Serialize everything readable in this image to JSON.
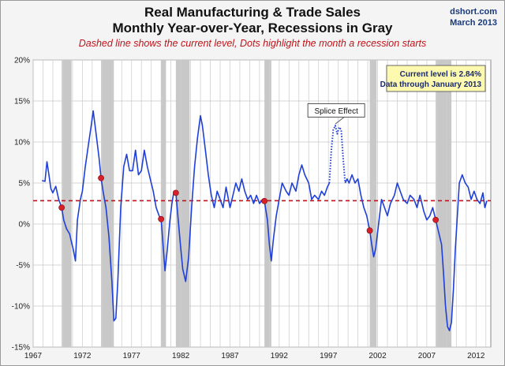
{
  "header": {
    "title_line1": "Real Manufacturing & Trade Sales",
    "title_line2": "Monthly Year-over-Year, Recessions in Gray",
    "subtitle": "Dashed line shows the current level, Dots highlight the month a recession starts",
    "source_site": "dshort.com",
    "source_date": "March 2013"
  },
  "colors": {
    "series": "#1f3fd9",
    "current_level": "#c0141b",
    "recession_shade": "#c8c8c8",
    "callout_bg": "#fdfab0"
  },
  "chart_data": {
    "type": "line",
    "title": "Real Manufacturing & Trade Sales — Monthly Year-over-Year, Recessions in Gray",
    "xlabel": "",
    "ylabel": "",
    "xlim": [
      1967,
      2013.5
    ],
    "ylim": [
      -15,
      20
    ],
    "x_ticks": [
      "1967",
      "1972",
      "1977",
      "1982",
      "1987",
      "1992",
      "1997",
      "2002",
      "2007",
      "2012"
    ],
    "y_ticks": [
      "20%",
      "15%",
      "10%",
      "5%",
      "0%",
      "-5%",
      "-10%",
      "-15%"
    ],
    "y_tick_values": [
      20,
      15,
      10,
      5,
      0,
      -5,
      -10,
      -15
    ],
    "grid": true,
    "current_level": 2.84,
    "recessions": [
      {
        "start": 1969.9,
        "end": 1970.9
      },
      {
        "start": 1973.9,
        "end": 1975.2
      },
      {
        "start": 1980.0,
        "end": 1980.5
      },
      {
        "start": 1981.5,
        "end": 1982.9
      },
      {
        "start": 1990.5,
        "end": 1991.2
      },
      {
        "start": 2001.2,
        "end": 2001.9
      },
      {
        "start": 2007.9,
        "end": 2009.5
      }
    ],
    "recession_start_dots": [
      {
        "x": 1969.9,
        "y": 2.0
      },
      {
        "x": 1973.9,
        "y": 5.6
      },
      {
        "x": 1980.0,
        "y": 0.6
      },
      {
        "x": 1981.5,
        "y": 3.8
      },
      {
        "x": 1990.5,
        "y": 2.8
      },
      {
        "x": 2001.2,
        "y": -0.8
      },
      {
        "x": 2007.9,
        "y": 0.5
      }
    ],
    "series": [
      {
        "name": "",
        "style": "solid",
        "points": [
          [
            1967.9,
            5.3
          ],
          [
            1968.2,
            5.2
          ],
          [
            1968.4,
            7.6
          ],
          [
            1968.6,
            6.0
          ],
          [
            1968.8,
            4.3
          ],
          [
            1969.0,
            3.8
          ],
          [
            1969.3,
            4.6
          ],
          [
            1969.6,
            3.0
          ],
          [
            1969.9,
            2.0
          ],
          [
            1970.1,
            0.5
          ],
          [
            1970.4,
            -0.6
          ],
          [
            1970.7,
            -1.2
          ],
          [
            1970.9,
            -2.2
          ],
          [
            1971.1,
            -3.2
          ],
          [
            1971.3,
            -4.5
          ],
          [
            1971.5,
            0.5
          ],
          [
            1971.8,
            3.0
          ],
          [
            1972.0,
            4.0
          ],
          [
            1972.3,
            7.0
          ],
          [
            1972.6,
            9.5
          ],
          [
            1972.9,
            12.0
          ],
          [
            1973.1,
            13.8
          ],
          [
            1973.4,
            11.0
          ],
          [
            1973.7,
            8.0
          ],
          [
            1973.9,
            5.6
          ],
          [
            1974.1,
            4.0
          ],
          [
            1974.4,
            2.0
          ],
          [
            1974.7,
            -1.5
          ],
          [
            1975.0,
            -7.0
          ],
          [
            1975.2,
            -11.8
          ],
          [
            1975.4,
            -11.5
          ],
          [
            1975.6,
            -7.0
          ],
          [
            1975.9,
            2.0
          ],
          [
            1976.2,
            7.0
          ],
          [
            1976.5,
            8.5
          ],
          [
            1976.8,
            6.5
          ],
          [
            1977.1,
            6.5
          ],
          [
            1977.4,
            9.0
          ],
          [
            1977.7,
            6.0
          ],
          [
            1978.0,
            6.5
          ],
          [
            1978.3,
            9.0
          ],
          [
            1978.6,
            7.0
          ],
          [
            1978.9,
            5.5
          ],
          [
            1979.2,
            4.0
          ],
          [
            1979.5,
            2.0
          ],
          [
            1979.8,
            1.0
          ],
          [
            1980.0,
            0.6
          ],
          [
            1980.2,
            -2.5
          ],
          [
            1980.4,
            -5.7
          ],
          [
            1980.6,
            -3.5
          ],
          [
            1980.9,
            0.5
          ],
          [
            1981.1,
            2.5
          ],
          [
            1981.3,
            4.0
          ],
          [
            1981.5,
            3.8
          ],
          [
            1981.7,
            1.0
          ],
          [
            1982.0,
            -3.0
          ],
          [
            1982.2,
            -5.5
          ],
          [
            1982.5,
            -7.0
          ],
          [
            1982.8,
            -4.0
          ],
          [
            1983.1,
            2.0
          ],
          [
            1983.4,
            7.0
          ],
          [
            1983.7,
            10.5
          ],
          [
            1984.0,
            13.2
          ],
          [
            1984.2,
            12.0
          ],
          [
            1984.5,
            9.0
          ],
          [
            1984.8,
            6.0
          ],
          [
            1985.1,
            3.5
          ],
          [
            1985.4,
            2.0
          ],
          [
            1985.7,
            4.0
          ],
          [
            1986.0,
            3.0
          ],
          [
            1986.3,
            2.0
          ],
          [
            1986.6,
            4.5
          ],
          [
            1987.0,
            2.0
          ],
          [
            1987.3,
            3.5
          ],
          [
            1987.6,
            5.0
          ],
          [
            1987.9,
            4.0
          ],
          [
            1988.2,
            5.5
          ],
          [
            1988.5,
            4.0
          ],
          [
            1988.8,
            3.0
          ],
          [
            1989.1,
            3.5
          ],
          [
            1989.4,
            2.5
          ],
          [
            1989.7,
            3.5
          ],
          [
            1990.0,
            2.5
          ],
          [
            1990.3,
            3.0
          ],
          [
            1990.5,
            2.8
          ],
          [
            1990.8,
            0.5
          ],
          [
            1991.0,
            -2.5
          ],
          [
            1991.2,
            -4.5
          ],
          [
            1991.4,
            -2.0
          ],
          [
            1991.7,
            1.0
          ],
          [
            1992.0,
            3.0
          ],
          [
            1992.3,
            5.0
          ],
          [
            1992.7,
            4.0
          ],
          [
            1993.0,
            3.5
          ],
          [
            1993.3,
            5.0
          ],
          [
            1993.7,
            4.0
          ],
          [
            1994.0,
            6.0
          ],
          [
            1994.3,
            7.2
          ],
          [
            1994.6,
            6.0
          ],
          [
            1995.0,
            5.0
          ],
          [
            1995.3,
            3.0
          ],
          [
            1995.6,
            3.5
          ],
          [
            1996.0,
            3.0
          ],
          [
            1996.3,
            4.0
          ],
          [
            1996.6,
            3.5
          ],
          [
            1996.9,
            4.5
          ],
          [
            1997.1,
            5.0
          ]
        ]
      },
      {
        "name": "Splice Effect",
        "style": "dotted",
        "points": [
          [
            1997.1,
            5.0
          ],
          [
            1997.3,
            9.0
          ],
          [
            1997.5,
            11.5
          ],
          [
            1997.7,
            12.0
          ],
          [
            1997.9,
            11.0
          ],
          [
            1998.1,
            11.8
          ],
          [
            1998.3,
            11.5
          ],
          [
            1998.5,
            8.0
          ],
          [
            1998.7,
            5.0
          ]
        ]
      },
      {
        "name": "",
        "style": "solid",
        "points": [
          [
            1998.7,
            5.0
          ],
          [
            1998.9,
            5.5
          ],
          [
            1999.1,
            5.0
          ],
          [
            1999.4,
            6.0
          ],
          [
            1999.7,
            5.0
          ],
          [
            2000.0,
            5.5
          ],
          [
            2000.3,
            3.5
          ],
          [
            2000.6,
            2.0
          ],
          [
            2000.9,
            1.0
          ],
          [
            2001.2,
            -0.8
          ],
          [
            2001.4,
            -2.5
          ],
          [
            2001.6,
            -4.0
          ],
          [
            2001.8,
            -3.0
          ],
          [
            2002.1,
            0.0
          ],
          [
            2002.4,
            3.0
          ],
          [
            2002.7,
            2.0
          ],
          [
            2003.0,
            1.0
          ],
          [
            2003.3,
            2.5
          ],
          [
            2003.7,
            3.5
          ],
          [
            2004.0,
            5.0
          ],
          [
            2004.3,
            4.0
          ],
          [
            2004.6,
            3.0
          ],
          [
            2005.0,
            2.5
          ],
          [
            2005.3,
            3.5
          ],
          [
            2005.7,
            3.0
          ],
          [
            2006.0,
            2.0
          ],
          [
            2006.3,
            3.5
          ],
          [
            2006.7,
            1.5
          ],
          [
            2007.0,
            0.5
          ],
          [
            2007.3,
            1.0
          ],
          [
            2007.6,
            2.0
          ],
          [
            2007.9,
            0.5
          ],
          [
            2008.2,
            -1.0
          ],
          [
            2008.5,
            -2.5
          ],
          [
            2008.7,
            -6.0
          ],
          [
            2008.9,
            -10.0
          ],
          [
            2009.1,
            -12.5
          ],
          [
            2009.3,
            -13.0
          ],
          [
            2009.5,
            -12.0
          ],
          [
            2009.7,
            -8.0
          ],
          [
            2009.9,
            -3.0
          ],
          [
            2010.1,
            1.0
          ],
          [
            2010.3,
            5.0
          ],
          [
            2010.6,
            6.0
          ],
          [
            2010.9,
            5.0
          ],
          [
            2011.2,
            4.5
          ],
          [
            2011.5,
            3.0
          ],
          [
            2011.8,
            4.0
          ],
          [
            2012.1,
            3.0
          ],
          [
            2012.4,
            2.5
          ],
          [
            2012.7,
            3.8
          ],
          [
            2012.9,
            2.0
          ],
          [
            2013.1,
            2.84
          ]
        ]
      }
    ],
    "annotations": [
      {
        "text": "Splice Effect",
        "x": 1997.8,
        "y": 13.8
      },
      {
        "text": "Current level is 2.84%",
        "position": "top-right"
      },
      {
        "text": "Data through January 2013",
        "position": "top-right"
      }
    ]
  }
}
